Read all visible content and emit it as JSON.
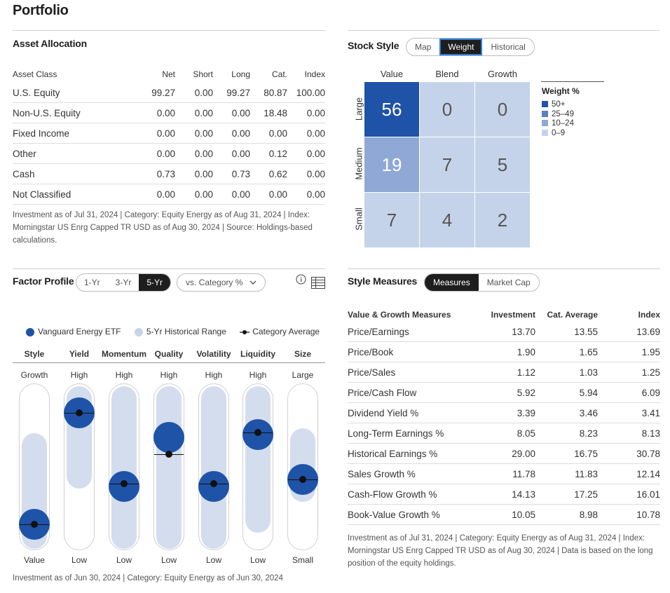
{
  "page_title": "Portfolio",
  "asset_allocation": {
    "title": "Asset Allocation",
    "headers": [
      "Asset Class",
      "Net",
      "Short",
      "Long",
      "Cat.",
      "Index"
    ],
    "rows": [
      [
        "U.S. Equity",
        "99.27",
        "0.00",
        "99.27",
        "80.87",
        "100.00"
      ],
      [
        "Non-U.S. Equity",
        "0.00",
        "0.00",
        "0.00",
        "18.48",
        "0.00"
      ],
      [
        "Fixed Income",
        "0.00",
        "0.00",
        "0.00",
        "0.00",
        "0.00"
      ],
      [
        "Other",
        "0.00",
        "0.00",
        "0.00",
        "0.12",
        "0.00"
      ],
      [
        "Cash",
        "0.73",
        "0.00",
        "0.73",
        "0.62",
        "0.00"
      ],
      [
        "Not Classified",
        "0.00",
        "0.00",
        "0.00",
        "0.00",
        "0.00"
      ]
    ],
    "note": "Investment as of Jul 31, 2024 | Category: Equity Energy as of Aug 31, 2024 | Index: Morningstar US Enrg Capped TR USD as of Aug 30, 2024 | Source: Holdings-based calculations."
  },
  "stock_style": {
    "title": "Stock Style",
    "tabs": [
      "Map",
      "Weight",
      "Historical"
    ],
    "active_tab": "Weight",
    "columns": [
      "Value",
      "Blend",
      "Growth"
    ],
    "rows": [
      "Large",
      "Medium",
      "Small"
    ],
    "grid": [
      [
        "56",
        "0",
        "0"
      ],
      [
        "19",
        "7",
        "5"
      ],
      [
        "7",
        "4",
        "2"
      ]
    ],
    "legend_title": "Weight %",
    "legend": [
      {
        "label": "50+",
        "color": "#1f53a8"
      },
      {
        "label": "25–49",
        "color": "#5b7fc0"
      },
      {
        "label": "10–24",
        "color": "#8fa8d6"
      },
      {
        "label": "0–9",
        "color": "#c5d3ea"
      }
    ]
  },
  "factor_profile": {
    "title": "Factor Profile",
    "periods": [
      "1-Yr",
      "3-Yr",
      "5-Yr"
    ],
    "active_period": "5-Yr",
    "compare_dropdown": "vs. Category %",
    "legend": {
      "fund": "Vanguard Energy ETF",
      "range": "5-Yr Historical Range",
      "avg": "Category Average"
    },
    "factors": [
      {
        "name": "Style",
        "top": "Growth",
        "bottom": "Value",
        "fund": 0.92,
        "avg": 0.92,
        "range": [
          0.29,
          1.0
        ]
      },
      {
        "name": "Yield",
        "top": "High",
        "bottom": "Low",
        "fund": 0.1,
        "avg": 0.1,
        "range": [
          0.0,
          0.63
        ]
      },
      {
        "name": "Momentum",
        "top": "High",
        "bottom": "Low",
        "fund": 0.64,
        "avg": 0.62,
        "range": [
          0.0,
          1.0
        ]
      },
      {
        "name": "Quality",
        "top": "High",
        "bottom": "Low",
        "fund": 0.28,
        "avg": 0.4,
        "range": [
          0.0,
          1.0
        ]
      },
      {
        "name": "Volatility",
        "top": "High",
        "bottom": "Low",
        "fund": 0.64,
        "avg": 0.62,
        "range": [
          0.0,
          1.0
        ]
      },
      {
        "name": "Liquidity",
        "top": "High",
        "bottom": "Low",
        "fund": 0.26,
        "avg": 0.24,
        "range": [
          0.0,
          0.9
        ]
      },
      {
        "name": "Size",
        "top": "Large",
        "bottom": "Small",
        "fund": 0.59,
        "avg": 0.59,
        "range": [
          0.26,
          0.71
        ]
      }
    ],
    "note": "Investment as of Jun 30, 2024 | Category: Equity Energy as of Jun 30, 2024"
  },
  "style_measures": {
    "title": "Style Measures",
    "tabs": [
      "Measures",
      "Market Cap"
    ],
    "active_tab": "Measures",
    "headers": [
      "Value & Growth Measures",
      "Investment",
      "Cat. Average",
      "Index"
    ],
    "rows": [
      [
        "Price/Earnings",
        "13.70",
        "13.55",
        "13.69"
      ],
      [
        "Price/Book",
        "1.90",
        "1.65",
        "1.95"
      ],
      [
        "Price/Sales",
        "1.12",
        "1.03",
        "1.25"
      ],
      [
        "Price/Cash Flow",
        "5.92",
        "5.94",
        "6.09"
      ],
      [
        "Dividend Yield %",
        "3.39",
        "3.46",
        "3.41"
      ],
      [
        "Long-Term Earnings %",
        "8.05",
        "8.23",
        "8.13"
      ],
      [
        "Historical Earnings %",
        "29.00",
        "16.75",
        "30.78"
      ],
      [
        "Sales Growth %",
        "11.78",
        "11.83",
        "12.14"
      ],
      [
        "Cash-Flow Growth %",
        "14.13",
        "17.25",
        "16.01"
      ],
      [
        "Book-Value Growth %",
        "10.05",
        "8.98",
        "10.78"
      ]
    ],
    "note": "Investment as of Jul 31, 2024 | Category: Equity Energy as of Aug 31, 2024 | Index: Morningstar US Enrg Capped TR USD as of Aug 30, 2024 | Data is based on the long position of the equity holdings."
  }
}
